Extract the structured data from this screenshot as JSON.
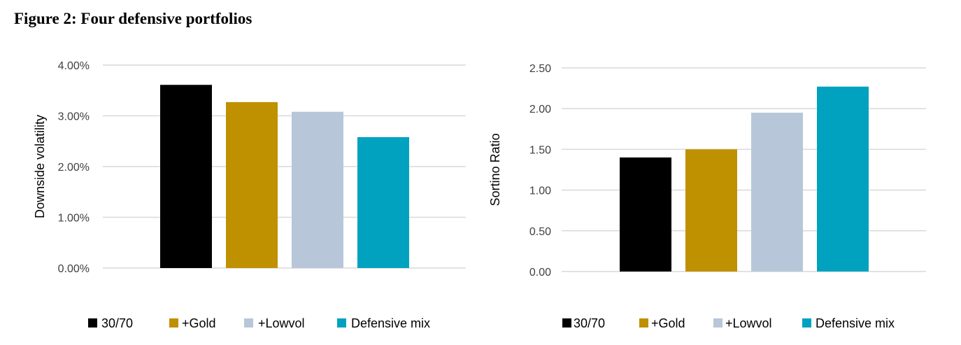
{
  "figure_title": "Figure 2: Four defensive portfolios",
  "colors": {
    "30/70": "#000000",
    "+Gold": "#bf9000",
    "+Lowvol": "#b7c7d9",
    "Defensive mix": "#00a2c0"
  },
  "chart_data": [
    {
      "type": "bar",
      "title": "",
      "xlabel": "",
      "ylabel": "Downside volatility",
      "categories": [
        "30/70",
        "+Gold",
        "+Lowvol",
        "Defensive mix"
      ],
      "values": [
        0.0361,
        0.0327,
        0.0308,
        0.0258
      ],
      "ylim": [
        0,
        0.04
      ],
      "yticks": [
        0,
        0.01,
        0.02,
        0.03,
        0.04
      ],
      "ytick_labels": [
        "0.00%",
        "1.00%",
        "2.00%",
        "3.00%",
        "4.00%"
      ],
      "grid": true,
      "legend": {
        "position": "bottom",
        "entries": [
          "30/70",
          "+Gold",
          "+Lowvol",
          "Defensive mix"
        ]
      }
    },
    {
      "type": "bar",
      "title": "",
      "xlabel": "",
      "ylabel": "Sortino Ratio",
      "categories": [
        "30/70",
        "+Gold",
        "+Lowvol",
        "Defensive mix"
      ],
      "values": [
        1.4,
        1.5,
        1.95,
        2.27
      ],
      "ylim": [
        0,
        2.5
      ],
      "yticks": [
        0,
        0.5,
        1.0,
        1.5,
        2.0,
        2.5
      ],
      "ytick_labels": [
        "0.00",
        "0.50",
        "1.00",
        "1.50",
        "2.00",
        "2.50"
      ],
      "grid": true,
      "legend": {
        "position": "bottom",
        "entries": [
          "30/70",
          "+Gold",
          "+Lowvol",
          "Defensive mix"
        ]
      }
    }
  ]
}
